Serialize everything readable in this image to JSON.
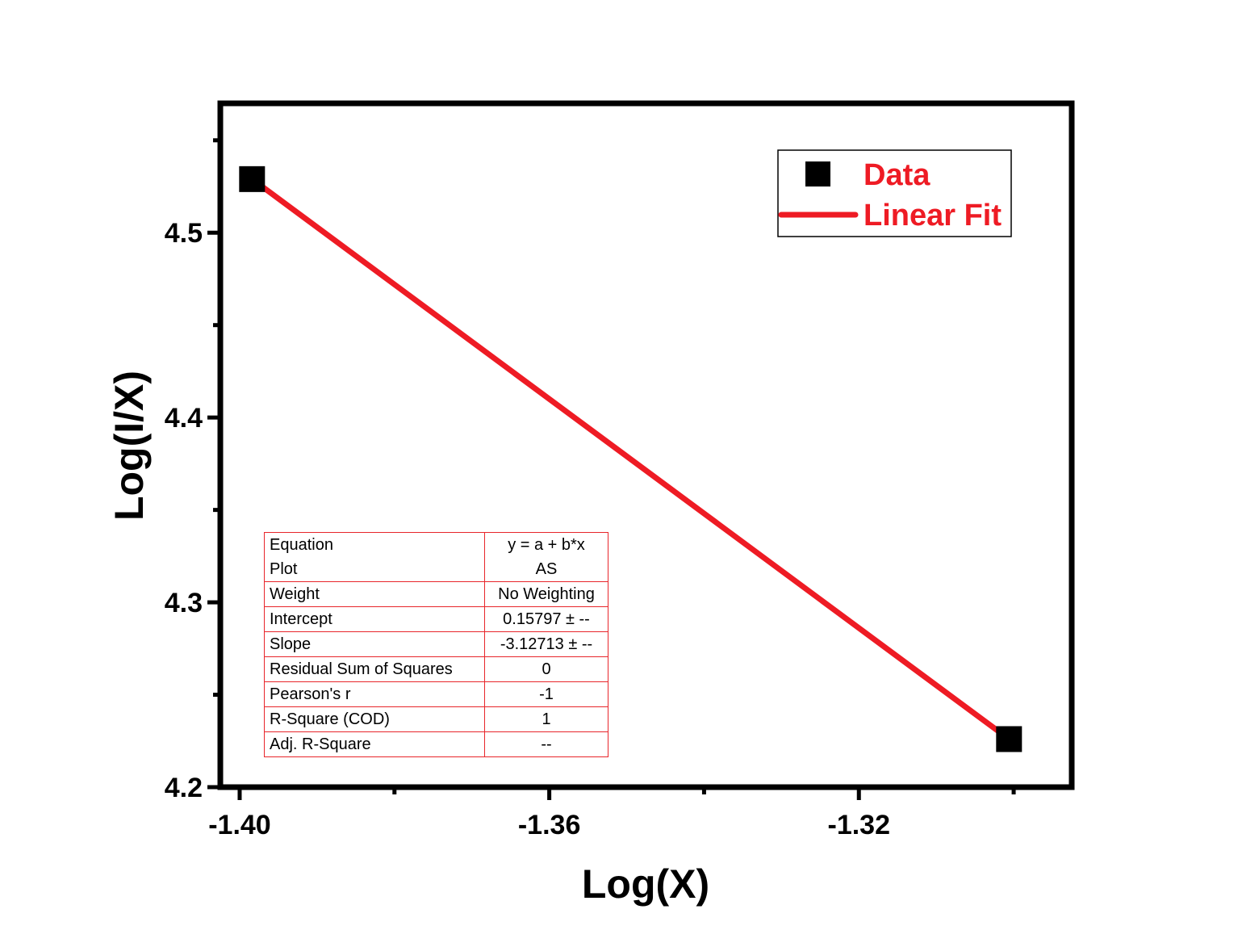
{
  "chart_data": {
    "type": "scatter",
    "xlabel": "Log(X)",
    "ylabel": "Log(I/X)",
    "xlim": [
      -1.4025,
      -1.2925
    ],
    "ylim": [
      4.2,
      4.57
    ],
    "xticks": [
      -1.4,
      -1.36,
      -1.32
    ],
    "xtick_labels": [
      "-1.40",
      "-1.36",
      "-1.32"
    ],
    "yticks": [
      4.2,
      4.3,
      4.4,
      4.5
    ],
    "ytick_labels": [
      "4.2",
      "4.3",
      "4.4",
      "4.5"
    ],
    "grid": false,
    "legend_position": "top-right",
    "series": [
      {
        "name": "Data",
        "kind": "scatter",
        "marker": "square",
        "color": "#000000",
        "x": [
          -1.3984,
          -1.3006
        ],
        "y": [
          4.529,
          4.226
        ]
      },
      {
        "name": "Linear Fit",
        "kind": "line",
        "color": "#ee1b24",
        "x": [
          -1.3984,
          -1.3006
        ],
        "y": [
          4.529,
          4.226
        ]
      }
    ],
    "fit_table": [
      {
        "label": "Equation",
        "value": "y = a + b*x"
      },
      {
        "label": "Plot",
        "value": "AS"
      },
      {
        "label": "Weight",
        "value": "No Weighting"
      },
      {
        "label": "Intercept",
        "value": "0.15797 ± --"
      },
      {
        "label": "Slope",
        "value": "-3.12713 ± --"
      },
      {
        "label": "Residual Sum of Squares",
        "value": "0"
      },
      {
        "label": "Pearson's r",
        "value": "-1"
      },
      {
        "label": "R-Square (COD)",
        "value": "1"
      },
      {
        "label": "Adj. R-Square",
        "value": "--"
      }
    ]
  }
}
